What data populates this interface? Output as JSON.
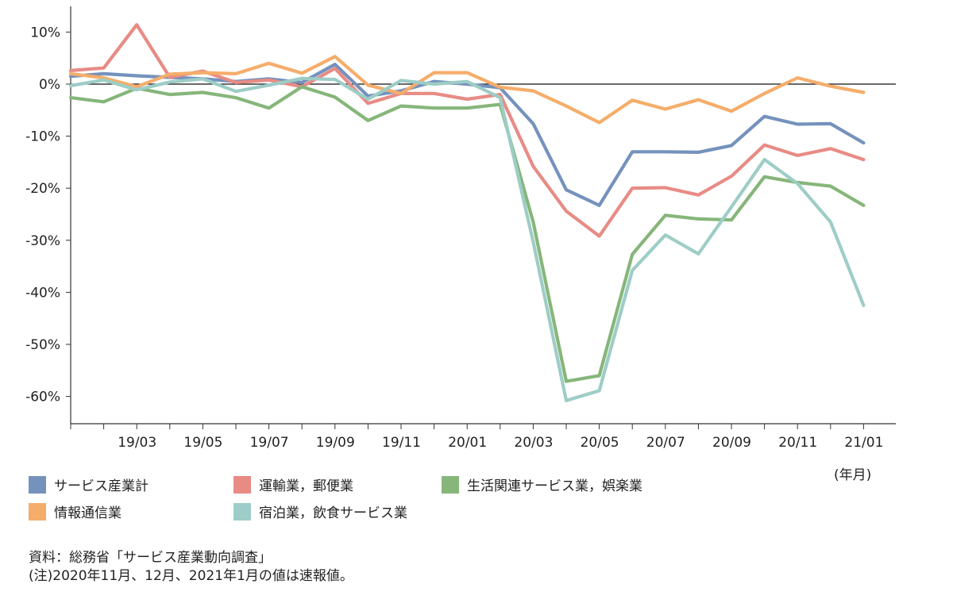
{
  "chart_data": {
    "type": "line",
    "x": [
      "19/01",
      "19/02",
      "19/03",
      "19/04",
      "19/05",
      "19/06",
      "19/07",
      "19/08",
      "19/09",
      "19/10",
      "19/11",
      "19/12",
      "20/01",
      "20/02",
      "20/03",
      "20/04",
      "20/05",
      "20/06",
      "20/07",
      "20/08",
      "20/09",
      "20/10",
      "20/11",
      "20/12",
      "21/01"
    ],
    "x_tick_labels": [
      "19/03",
      "19/05",
      "19/07",
      "19/09",
      "19/11",
      "20/01",
      "20/03",
      "20/05",
      "20/07",
      "20/09",
      "20/11",
      "21/01"
    ],
    "x_unit": "(年月)",
    "ylim": [
      -65,
      15
    ],
    "y_ticks": [
      10,
      0,
      -10,
      -20,
      -30,
      -40,
      -50,
      -60
    ],
    "y_tick_labels": [
      "10%",
      "0%",
      "-10%",
      "-20%",
      "-30%",
      "-40%",
      "-50%",
      "-60%"
    ],
    "legend_position": "bottom",
    "series": [
      {
        "name": "サービス産業計",
        "color": "#7592BD",
        "values": [
          1.5,
          2.0,
          1.6,
          1.3,
          1.0,
          0.5,
          1.0,
          0.3,
          3.8,
          -2.3,
          -1.3,
          0.5,
          0.0,
          -0.7,
          -7.6,
          -20.3,
          -23.3,
          -13.0,
          -13.0,
          -13.1,
          -11.8,
          -6.2,
          -7.7,
          -7.6,
          -11.3
        ]
      },
      {
        "name": "運輸業，郵便業",
        "color": "#E88B85",
        "values": [
          2.6,
          3.1,
          11.4,
          1.3,
          2.5,
          0.3,
          0.8,
          -0.5,
          3.0,
          -3.7,
          -1.8,
          -1.8,
          -2.9,
          -2.0,
          -15.8,
          -24.4,
          -29.2,
          -20.0,
          -19.9,
          -21.3,
          -17.7,
          -11.7,
          -13.7,
          -12.4,
          -14.5
        ]
      },
      {
        "name": "生活関連サービス業，娯楽業",
        "color": "#86B67A",
        "values": [
          -2.6,
          -3.4,
          -0.8,
          -2.0,
          -1.6,
          -2.6,
          -4.6,
          -0.5,
          -2.5,
          -7.0,
          -4.2,
          -4.6,
          -4.6,
          -3.9,
          -26.5,
          -57.1,
          -56.0,
          -32.7,
          -25.2,
          -25.9,
          -26.1,
          -17.8,
          -18.9,
          -19.6,
          -23.3
        ]
      },
      {
        "name": "情報通信業",
        "color": "#F5AD6B",
        "values": [
          2.0,
          1.2,
          -0.5,
          1.9,
          2.2,
          2.0,
          4.0,
          2.1,
          5.3,
          -0.2,
          -1.8,
          2.2,
          2.2,
          -0.6,
          -1.3,
          -4.2,
          -7.4,
          -3.1,
          -4.8,
          -3.0,
          -5.2,
          -1.8,
          1.2,
          -0.4,
          -1.6
        ]
      },
      {
        "name": "宿泊業，飲食サービス業",
        "color": "#9DCDC6",
        "values": [
          -0.3,
          0.8,
          -1.1,
          0.4,
          1.0,
          -1.4,
          -0.2,
          1.1,
          0.9,
          -2.9,
          0.7,
          0.0,
          0.5,
          -2.6,
          -30.3,
          -60.8,
          -58.9,
          -35.8,
          -29.0,
          -32.6,
          -23.6,
          -14.5,
          -19.1,
          -26.5,
          -42.5
        ]
      }
    ]
  },
  "source_note": "資料：総務省「サービス産業動向調査」",
  "footnote": "(注)2020年11月、12月、2021年1月の値は速報値。"
}
